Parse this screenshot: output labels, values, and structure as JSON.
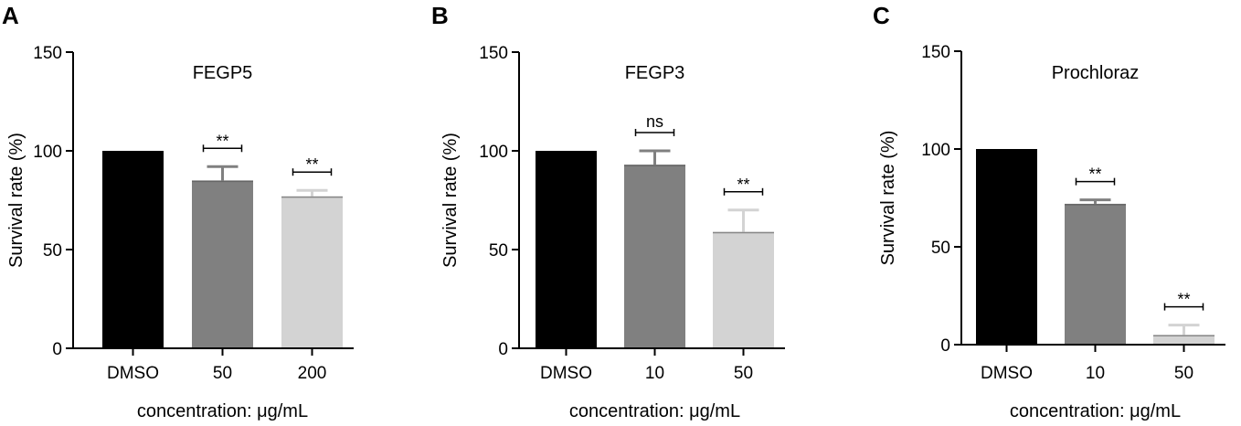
{
  "chart_data": [
    {
      "type": "bar",
      "panel": "A",
      "title": "FEGP5",
      "xlabel": "concentration: μg/mL",
      "ylabel": "Survival rate (%)",
      "ylim": [
        0,
        150
      ],
      "yticks": [
        "0",
        "50",
        "100",
        "150"
      ],
      "categories": [
        "DMSO",
        "50",
        "200"
      ],
      "values": [
        100,
        85,
        77
      ],
      "errors": [
        0,
        7,
        3
      ],
      "significance": [
        "",
        "**",
        "**"
      ],
      "colors": [
        "#000000",
        "#808080",
        "#d3d3d3"
      ]
    },
    {
      "type": "bar",
      "panel": "B",
      "title": "FEGP3",
      "xlabel": "concentration: μg/mL",
      "ylabel": "Survival rate (%)",
      "ylim": [
        0,
        150
      ],
      "yticks": [
        "0",
        "50",
        "100",
        "150"
      ],
      "categories": [
        "DMSO",
        "10",
        "50"
      ],
      "values": [
        100,
        93,
        59
      ],
      "errors": [
        0,
        7,
        11
      ],
      "significance": [
        "",
        "ns",
        "**"
      ],
      "colors": [
        "#000000",
        "#808080",
        "#d3d3d3"
      ]
    },
    {
      "type": "bar",
      "panel": "C",
      "title": "Prochloraz",
      "xlabel": "concentration: μg/mL",
      "ylabel": "Survival rate (%)",
      "ylim": [
        0,
        150
      ],
      "yticks": [
        "0",
        "50",
        "100",
        "150"
      ],
      "categories": [
        "DMSO",
        "10",
        "50"
      ],
      "values": [
        100,
        72,
        5
      ],
      "errors": [
        0,
        2,
        5
      ],
      "significance": [
        "",
        "**",
        "**"
      ],
      "colors": [
        "#000000",
        "#808080",
        "#d3d3d3"
      ]
    }
  ]
}
